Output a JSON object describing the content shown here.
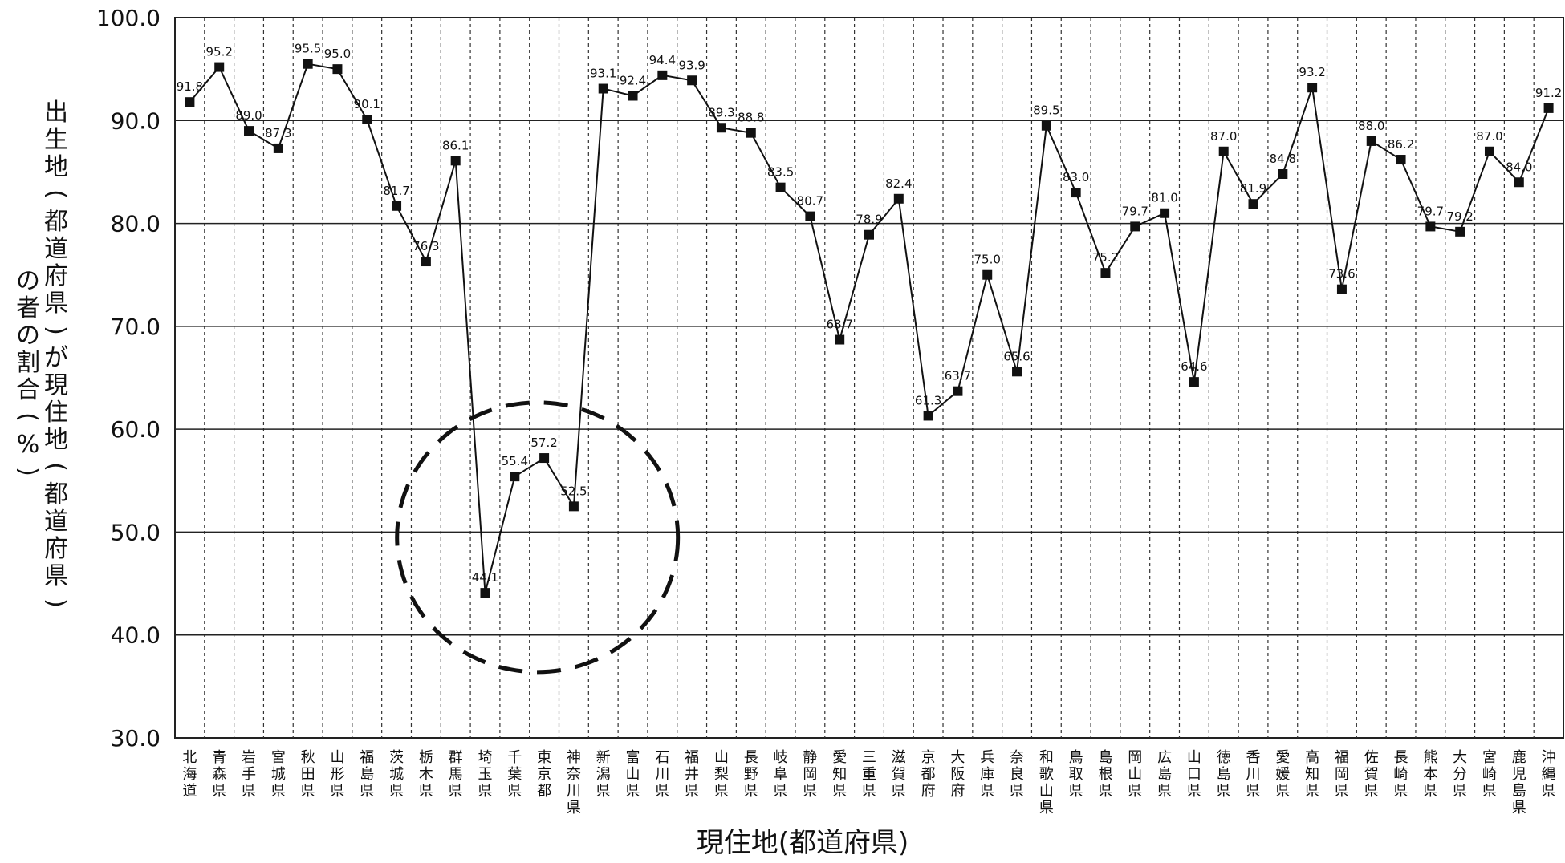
{
  "chart_data": {
    "type": "line",
    "title": "",
    "xlabel": "現住地(都道府県)",
    "ylabel": "出生地(都道府県)が現住地(都道府県)の者の割合(%)",
    "ylim": [
      30,
      100
    ],
    "yticks": [
      "100.0",
      "90.0",
      "80.0",
      "70.0",
      "60.0",
      "50.0",
      "40.0",
      "30.0"
    ],
    "grid": {
      "horizontal": "solid",
      "vertical": "dashed"
    },
    "line_color": "#111111",
    "marker": "square",
    "categories": [
      "北海道",
      "青森県",
      "岩手県",
      "宮城県",
      "秋田県",
      "山形県",
      "福島県",
      "茨城県",
      "栃木県",
      "群馬県",
      "埼玉県",
      "千葉県",
      "東京都",
      "神奈川県",
      "新潟県",
      "富山県",
      "石川県",
      "福井県",
      "山梨県",
      "長野県",
      "岐阜県",
      "静岡県",
      "愛知県",
      "三重県",
      "滋賀県",
      "京都府",
      "大阪府",
      "兵庫県",
      "奈良県",
      "和歌山県",
      "鳥取県",
      "島根県",
      "岡山県",
      "広島県",
      "山口県",
      "徳島県",
      "香川県",
      "愛媛県",
      "高知県",
      "福岡県",
      "佐賀県",
      "長崎県",
      "熊本県",
      "大分県",
      "宮崎県",
      "鹿児島県",
      "沖縄県"
    ],
    "values": [
      91.8,
      95.2,
      89.0,
      87.3,
      95.5,
      95.0,
      90.1,
      81.7,
      76.3,
      86.1,
      44.1,
      55.4,
      57.2,
      52.5,
      93.1,
      92.4,
      94.4,
      93.9,
      89.3,
      88.8,
      83.5,
      80.7,
      68.7,
      78.9,
      82.4,
      61.3,
      63.7,
      75.0,
      65.6,
      89.5,
      83.0,
      75.2,
      79.7,
      81.0,
      64.6,
      87.0,
      81.9,
      84.8,
      93.2,
      73.6,
      88.0,
      86.2,
      79.7,
      79.2,
      87.0,
      84.0,
      91.2
    ],
    "data_labels": [
      "91.8",
      "95.2",
      "89.0",
      "87.3",
      "95.5",
      "95.0",
      "90.1",
      "81.7",
      "76.3",
      "86.1",
      "44.1",
      "55.4",
      "57.2",
      "52.5",
      "93.1",
      "92.4",
      "94.4",
      "93.9",
      "89.3",
      "88.8",
      "83.5",
      "80.7",
      "68.7",
      "78.9",
      "82.4",
      "61.3",
      "63.7",
      "75.0",
      "65.6",
      "89.5",
      "83.0",
      "75.2",
      "79.7",
      "81.0",
      "64.6",
      "87.0",
      "81.9",
      "84.8",
      "93.2",
      "73.6",
      "88.0",
      "86.2",
      "79.7",
      "79.2",
      "87.0",
      "84.0",
      "91.2"
    ],
    "annotation": {
      "shape": "dashed-circle",
      "highlights": [
        "埼玉県",
        "千葉県",
        "東京都",
        "神奈川県"
      ]
    }
  }
}
